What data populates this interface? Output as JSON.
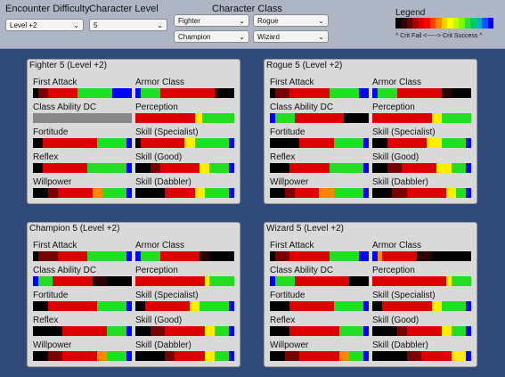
{
  "header": {
    "difficulty_label": "Encounter Difficulty",
    "difficulty_value": "Level +2",
    "level_label": "Character Level",
    "level_value": "5",
    "class_label": "Character Class",
    "class_selects": [
      "Fighter",
      "Rogue",
      "Champion",
      "Wizard"
    ],
    "legend_title": "Legend",
    "legend_caption": "^ Crit Fail <-----> Crit Success ^",
    "legend_colors": [
      "#000000",
      "#330000",
      "#660000",
      "#aa0000",
      "#dd0000",
      "#ff0000",
      "#ff4400",
      "#ff8800",
      "#ffcc00",
      "#ffff00",
      "#bbff00",
      "#77ff00",
      "#33dd33",
      "#00cc66",
      "#00aacc",
      "#0055ff",
      "#0000ff"
    ]
  },
  "colors": {
    "b": "#000000",
    "d": "#2a0000",
    "m": "#770000",
    "r": "#dd0000",
    "o": "#ff8800",
    "y": "#ffee00",
    "l": "#aaff00",
    "g": "#22dd22",
    "u": "#0000ff",
    "s": "#888888"
  },
  "panels": [
    {
      "title": "Fighter 5 (Level +2)",
      "stats": [
        {
          "name": "First Attack",
          "segments": [
            [
              "b",
              5
            ],
            [
              "m",
              10
            ],
            [
              "r",
              30
            ],
            [
              "g",
              35
            ],
            [
              "u",
              20
            ]
          ]
        },
        {
          "name": "Armor Class",
          "segments": [
            [
              "u",
              5
            ],
            [
              "g",
              20
            ],
            [
              "r",
              55
            ],
            [
              "d",
              5
            ],
            [
              "b",
              15
            ]
          ]
        },
        {
          "name": "Class Ability DC",
          "segments": [
            [
              "s",
              100
            ]
          ]
        },
        {
          "name": "Perception",
          "segments": [
            [
              "r",
              60
            ],
            [
              "y",
              8
            ],
            [
              "g",
              32
            ]
          ]
        },
        {
          "name": "Fortitude",
          "segments": [
            [
              "b",
              10
            ],
            [
              "r",
              55
            ],
            [
              "g",
              30
            ],
            [
              "u",
              5
            ]
          ]
        },
        {
          "name": "Skill (Specialist)",
          "segments": [
            [
              "b",
              5
            ],
            [
              "r",
              45
            ],
            [
              "y",
              10
            ],
            [
              "g",
              35
            ],
            [
              "u",
              5
            ]
          ]
        },
        {
          "name": "Reflex",
          "segments": [
            [
              "b",
              10
            ],
            [
              "r",
              45
            ],
            [
              "g",
              40
            ],
            [
              "u",
              5
            ]
          ]
        },
        {
          "name": "Skill (Good)",
          "segments": [
            [
              "b",
              15
            ],
            [
              "m",
              10
            ],
            [
              "r",
              40
            ],
            [
              "y",
              10
            ],
            [
              "g",
              20
            ],
            [
              "u",
              5
            ]
          ]
        },
        {
          "name": "Willpower",
          "segments": [
            [
              "b",
              15
            ],
            [
              "m",
              10
            ],
            [
              "r",
              35
            ],
            [
              "o",
              10
            ],
            [
              "g",
              25
            ],
            [
              "u",
              5
            ]
          ]
        },
        {
          "name": "Skill (Dabbler)",
          "segments": [
            [
              "b",
              30
            ],
            [
              "r",
              30
            ],
            [
              "y",
              10
            ],
            [
              "g",
              25
            ],
            [
              "u",
              5
            ]
          ]
        }
      ]
    },
    {
      "title": "Rogue 5 (Level +2)",
      "stats": [
        {
          "name": "First Attack",
          "segments": [
            [
              "b",
              5
            ],
            [
              "m",
              15
            ],
            [
              "r",
              40
            ],
            [
              "g",
              30
            ],
            [
              "u",
              10
            ]
          ]
        },
        {
          "name": "Armor Class",
          "segments": [
            [
              "u",
              5
            ],
            [
              "g",
              20
            ],
            [
              "r",
              45
            ],
            [
              "d",
              10
            ],
            [
              "b",
              20
            ]
          ]
        },
        {
          "name": "Class Ability DC",
          "segments": [
            [
              "u",
              5
            ],
            [
              "g",
              20
            ],
            [
              "r",
              50
            ],
            [
              "b",
              25
            ]
          ]
        },
        {
          "name": "Perception",
          "segments": [
            [
              "r",
              60
            ],
            [
              "y",
              10
            ],
            [
              "g",
              30
            ]
          ]
        },
        {
          "name": "Fortitude",
          "segments": [
            [
              "b",
              30
            ],
            [
              "r",
              35
            ],
            [
              "g",
              30
            ],
            [
              "u",
              5
            ]
          ]
        },
        {
          "name": "Skill (Specialist)",
          "segments": [
            [
              "b",
              15
            ],
            [
              "r",
              40
            ],
            [
              "y",
              15
            ],
            [
              "g",
              25
            ],
            [
              "u",
              5
            ]
          ]
        },
        {
          "name": "Reflex",
          "segments": [
            [
              "b",
              20
            ],
            [
              "r",
              40
            ],
            [
              "g",
              35
            ],
            [
              "u",
              5
            ]
          ]
        },
        {
          "name": "Skill (Good)",
          "segments": [
            [
              "b",
              15
            ],
            [
              "m",
              15
            ],
            [
              "r",
              35
            ],
            [
              "y",
              15
            ],
            [
              "g",
              15
            ],
            [
              "u",
              5
            ]
          ]
        },
        {
          "name": "Willpower",
          "segments": [
            [
              "b",
              15
            ],
            [
              "m",
              10
            ],
            [
              "r",
              25
            ],
            [
              "o",
              15
            ],
            [
              "g",
              30
            ],
            [
              "u",
              5
            ]
          ]
        },
        {
          "name": "Skill (Dabbler)",
          "segments": [
            [
              "b",
              20
            ],
            [
              "m",
              15
            ],
            [
              "r",
              40
            ],
            [
              "y",
              10
            ],
            [
              "g",
              10
            ],
            [
              "u",
              5
            ]
          ]
        }
      ]
    },
    {
      "title": "Champion 5 (Level +2)",
      "stats": [
        {
          "name": "First Attack",
          "segments": [
            [
              "b",
              5
            ],
            [
              "m",
              20
            ],
            [
              "r",
              30
            ],
            [
              "g",
              40
            ],
            [
              "u",
              5
            ]
          ]
        },
        {
          "name": "Armor Class",
          "segments": [
            [
              "u",
              5
            ],
            [
              "g",
              20
            ],
            [
              "r",
              40
            ],
            [
              "d",
              10
            ],
            [
              "b",
              25
            ]
          ]
        },
        {
          "name": "Class Ability DC",
          "segments": [
            [
              "u",
              5
            ],
            [
              "g",
              15
            ],
            [
              "r",
              40
            ],
            [
              "d",
              15
            ],
            [
              "b",
              25
            ]
          ]
        },
        {
          "name": "Perception",
          "segments": [
            [
              "r",
              70
            ],
            [
              "y",
              5
            ],
            [
              "g",
              25
            ]
          ]
        },
        {
          "name": "Fortitude",
          "segments": [
            [
              "b",
              15
            ],
            [
              "r",
              50
            ],
            [
              "g",
              30
            ],
            [
              "u",
              5
            ]
          ]
        },
        {
          "name": "Skill (Specialist)",
          "segments": [
            [
              "b",
              10
            ],
            [
              "r",
              45
            ],
            [
              "y",
              10
            ],
            [
              "g",
              30
            ],
            [
              "u",
              5
            ]
          ]
        },
        {
          "name": "Reflex",
          "segments": [
            [
              "b",
              30
            ],
            [
              "r",
              45
            ],
            [
              "g",
              20
            ],
            [
              "u",
              5
            ]
          ]
        },
        {
          "name": "Skill (Good)",
          "segments": [
            [
              "b",
              15
            ],
            [
              "m",
              15
            ],
            [
              "r",
              40
            ],
            [
              "y",
              10
            ],
            [
              "g",
              15
            ],
            [
              "u",
              5
            ]
          ]
        },
        {
          "name": "Willpower",
          "segments": [
            [
              "b",
              15
            ],
            [
              "m",
              15
            ],
            [
              "r",
              35
            ],
            [
              "o",
              10
            ],
            [
              "g",
              20
            ],
            [
              "u",
              5
            ]
          ]
        },
        {
          "name": "Skill (Dabbler)",
          "segments": [
            [
              "b",
              30
            ],
            [
              "m",
              10
            ],
            [
              "r",
              30
            ],
            [
              "y",
              10
            ],
            [
              "g",
              15
            ],
            [
              "u",
              5
            ]
          ]
        }
      ]
    },
    {
      "title": "Wizard 5 (Level +2)",
      "stats": [
        {
          "name": "First Attack",
          "segments": [
            [
              "b",
              5
            ],
            [
              "m",
              15
            ],
            [
              "r",
              40
            ],
            [
              "g",
              30
            ],
            [
              "u",
              10
            ]
          ]
        },
        {
          "name": "Armor Class",
          "segments": [
            [
              "u",
              5
            ],
            [
              "o",
              5
            ],
            [
              "r",
              35
            ],
            [
              "d",
              15
            ],
            [
              "b",
              40
            ]
          ]
        },
        {
          "name": "Class Ability DC",
          "segments": [
            [
              "u",
              5
            ],
            [
              "g",
              20
            ],
            [
              "r",
              55
            ],
            [
              "b",
              20
            ]
          ]
        },
        {
          "name": "Perception",
          "segments": [
            [
              "r",
              75
            ],
            [
              "y",
              5
            ],
            [
              "g",
              20
            ]
          ]
        },
        {
          "name": "Fortitude",
          "segments": [
            [
              "b",
              20
            ],
            [
              "r",
              45
            ],
            [
              "g",
              30
            ],
            [
              "u",
              5
            ]
          ]
        },
        {
          "name": "Skill (Specialist)",
          "segments": [
            [
              "b",
              10
            ],
            [
              "r",
              50
            ],
            [
              "y",
              10
            ],
            [
              "g",
              25
            ],
            [
              "u",
              5
            ]
          ]
        },
        {
          "name": "Reflex",
          "segments": [
            [
              "b",
              20
            ],
            [
              "r",
              50
            ],
            [
              "g",
              25
            ],
            [
              "u",
              5
            ]
          ]
        },
        {
          "name": "Skill (Good)",
          "segments": [
            [
              "b",
              25
            ],
            [
              "m",
              10
            ],
            [
              "r",
              35
            ],
            [
              "y",
              10
            ],
            [
              "g",
              15
            ],
            [
              "u",
              5
            ]
          ]
        },
        {
          "name": "Willpower",
          "segments": [
            [
              "b",
              15
            ],
            [
              "m",
              15
            ],
            [
              "r",
              40
            ],
            [
              "o",
              10
            ],
            [
              "g",
              15
            ],
            [
              "u",
              5
            ]
          ]
        },
        {
          "name": "Skill (Dabbler)",
          "segments": [
            [
              "b",
              35
            ],
            [
              "m",
              15
            ],
            [
              "r",
              30
            ],
            [
              "y",
              15
            ],
            [
              "u",
              5
            ]
          ]
        }
      ]
    }
  ]
}
